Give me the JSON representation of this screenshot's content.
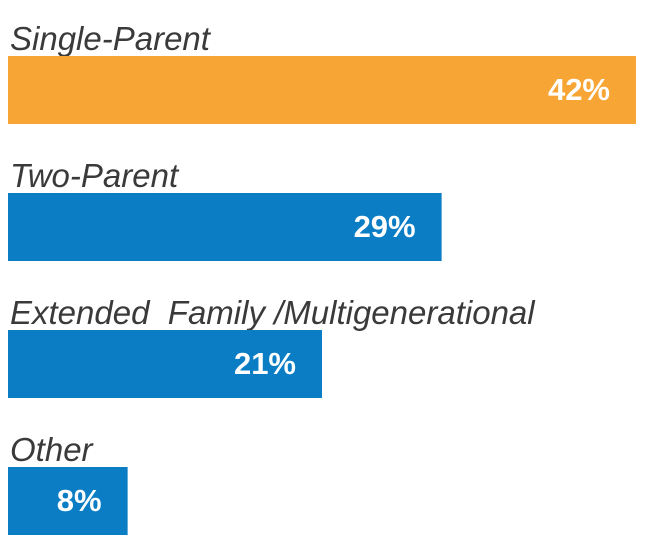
{
  "chart_data": {
    "type": "bar",
    "orientation": "horizontal",
    "categories": [
      "Single-Parent",
      "Two-Parent",
      "Extended  Family /Multigenerational",
      "Other"
    ],
    "values": [
      42,
      29,
      21,
      8
    ],
    "value_labels": [
      "42%",
      "29%",
      "21%",
      "8%"
    ],
    "colors": [
      "#f7a535",
      "#0a7dc4",
      "#0a7dc4",
      "#0a7dc4"
    ]
  }
}
